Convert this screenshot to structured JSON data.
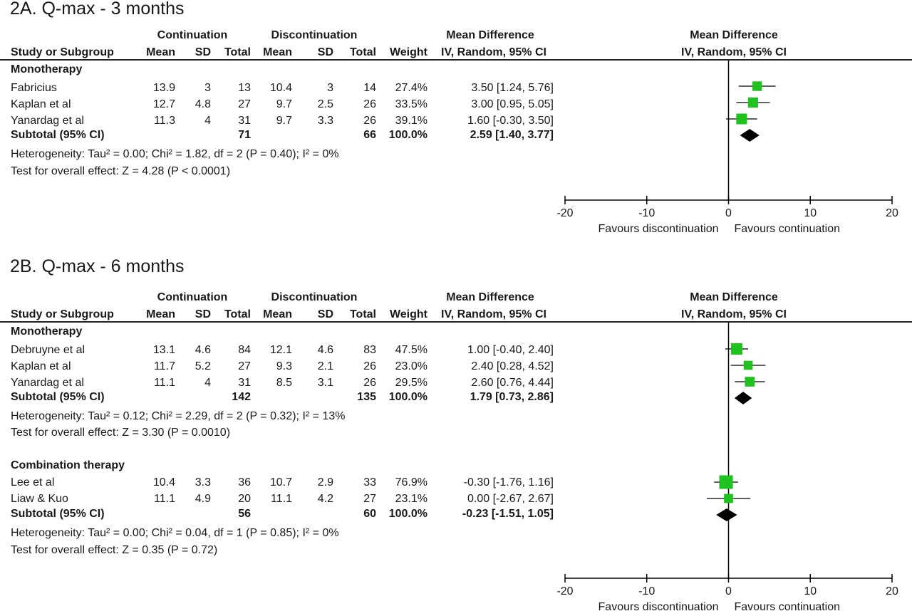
{
  "panels": [
    {
      "title": "2A. Q-max - 3 months",
      "headers": {
        "continuation": "Continuation",
        "discontinuation": "Discontinuation",
        "md_top": "Mean Difference",
        "md_bottom": "IV, Random, 95% CI",
        "study": "Study or Subgroup",
        "mean": "Mean",
        "sd": "SD",
        "total": "Total",
        "weight": "Weight"
      },
      "groups": [
        {
          "name": "Monotherapy",
          "studies": [
            {
              "study": "Fabricius",
              "c_mean": "13.9",
              "c_sd": "3",
              "c_total": "13",
              "d_mean": "10.4",
              "d_sd": "3",
              "d_total": "14",
              "weight": "27.4%",
              "ci_text": "3.50 [1.24, 5.76]"
            },
            {
              "study": "Kaplan et al",
              "c_mean": "12.7",
              "c_sd": "4.8",
              "c_total": "27",
              "d_mean": "9.7",
              "d_sd": "2.5",
              "d_total": "26",
              "weight": "33.5%",
              "ci_text": "3.00 [0.95, 5.05]"
            },
            {
              "study": "Yanardag et al",
              "c_mean": "11.3",
              "c_sd": "4",
              "c_total": "31",
              "d_mean": "9.7",
              "d_sd": "3.3",
              "d_total": "26",
              "weight": "39.1%",
              "ci_text": "1.60 [-0.30, 3.50]"
            }
          ],
          "subtotal": {
            "label": "Subtotal (95% CI)",
            "c_total": "71",
            "d_total": "66",
            "weight": "100.0%",
            "ci_text": "2.59 [1.40, 3.77]"
          },
          "heterogeneity": "Heterogeneity: Tau² = 0.00; Chi² = 1.82, df = 2 (P = 0.40); I² = 0%",
          "overall": "Test for overall effect: Z = 4.28 (P < 0.0001)"
        }
      ],
      "axis": {
        "ticks": [
          "-20",
          "-10",
          "0",
          "10",
          "20"
        ],
        "favours_left": "Favours discontinuation",
        "favours_right": "Favours continuation"
      }
    },
    {
      "title": "2B. Q-max - 6 months",
      "headers": {
        "continuation": "Continuation",
        "discontinuation": "Discontinuation",
        "md_top": "Mean Difference",
        "md_bottom": "IV, Random, 95% CI",
        "study": "Study or Subgroup",
        "mean": "Mean",
        "sd": "SD",
        "total": "Total",
        "weight": "Weight"
      },
      "groups": [
        {
          "name": "Monotherapy",
          "studies": [
            {
              "study": "Debruyne et al",
              "c_mean": "13.1",
              "c_sd": "4.6",
              "c_total": "84",
              "d_mean": "12.1",
              "d_sd": "4.6",
              "d_total": "83",
              "weight": "47.5%",
              "ci_text": "1.00 [-0.40, 2.40]"
            },
            {
              "study": "Kaplan et al",
              "c_mean": "11.7",
              "c_sd": "5.2",
              "c_total": "27",
              "d_mean": "9.3",
              "d_sd": "2.1",
              "d_total": "26",
              "weight": "23.0%",
              "ci_text": "2.40 [0.28, 4.52]"
            },
            {
              "study": "Yanardag et al",
              "c_mean": "11.1",
              "c_sd": "4",
              "c_total": "31",
              "d_mean": "8.5",
              "d_sd": "3.1",
              "d_total": "26",
              "weight": "29.5%",
              "ci_text": "2.60 [0.76, 4.44]"
            }
          ],
          "subtotal": {
            "label": "Subtotal (95% CI)",
            "c_total": "142",
            "d_total": "135",
            "weight": "100.0%",
            "ci_text": "1.79 [0.73, 2.86]"
          },
          "heterogeneity": "Heterogeneity: Tau² = 0.12; Chi² = 2.29, df = 2 (P = 0.32); I² = 13%",
          "overall": "Test for overall effect: Z = 3.30 (P = 0.0010)"
        },
        {
          "name": "Combination therapy",
          "studies": [
            {
              "study": "Lee et al",
              "c_mean": "10.4",
              "c_sd": "3.3",
              "c_total": "36",
              "d_mean": "10.7",
              "d_sd": "2.9",
              "d_total": "33",
              "weight": "76.9%",
              "ci_text": "-0.30 [-1.76, 1.16]"
            },
            {
              "study": "Liaw & Kuo",
              "c_mean": "11.1",
              "c_sd": "4.9",
              "c_total": "20",
              "d_mean": "11.1",
              "d_sd": "4.2",
              "d_total": "27",
              "weight": "23.1%",
              "ci_text": "0.00 [-2.67, 2.67]"
            }
          ],
          "subtotal": {
            "label": "Subtotal (95% CI)",
            "c_total": "56",
            "d_total": "60",
            "weight": "100.0%",
            "ci_text": "-0.23 [-1.51, 1.05]"
          },
          "heterogeneity": "Heterogeneity: Tau² = 0.00; Chi² = 0.04, df = 1 (P = 0.85); I² = 0%",
          "overall": "Test for overall effect: Z = 0.35 (P = 0.72)"
        }
      ],
      "axis": {
        "ticks": [
          "-20",
          "-10",
          "0",
          "10",
          "20"
        ],
        "favours_left": "Favours discontinuation",
        "favours_right": "Favours continuation"
      }
    }
  ],
  "colors": {
    "square": "#1fc21f",
    "diamond": "#000000",
    "line": "#000000"
  },
  "chart_data": [
    {
      "type": "forest",
      "title": "2A. Q-max - 3 months",
      "xlim": [
        -20,
        20
      ],
      "xticks": [
        -20,
        -10,
        0,
        10,
        20
      ],
      "studies": [
        {
          "name": "Fabricius",
          "md": 3.5,
          "lo": 1.24,
          "hi": 5.76,
          "weight": 27.4
        },
        {
          "name": "Kaplan et al",
          "md": 3.0,
          "lo": 0.95,
          "hi": 5.05,
          "weight": 33.5
        },
        {
          "name": "Yanardag et al",
          "md": 1.6,
          "lo": -0.3,
          "hi": 3.5,
          "weight": 39.1
        }
      ],
      "subtotals": [
        {
          "name": "Monotherapy",
          "md": 2.59,
          "lo": 1.4,
          "hi": 3.77
        }
      ]
    },
    {
      "type": "forest",
      "title": "2B. Q-max - 6 months",
      "xlim": [
        -20,
        20
      ],
      "xticks": [
        -20,
        -10,
        0,
        10,
        20
      ],
      "studies": [
        {
          "name": "Debruyne et al",
          "md": 1.0,
          "lo": -0.4,
          "hi": 2.4,
          "weight": 47.5
        },
        {
          "name": "Kaplan et al",
          "md": 2.4,
          "lo": 0.28,
          "hi": 4.52,
          "weight": 23.0
        },
        {
          "name": "Yanardag et al",
          "md": 2.6,
          "lo": 0.76,
          "hi": 4.44,
          "weight": 29.5
        },
        {
          "name": "Lee et al",
          "md": -0.3,
          "lo": -1.76,
          "hi": 1.16,
          "weight": 76.9
        },
        {
          "name": "Liaw & Kuo",
          "md": 0.0,
          "lo": -2.67,
          "hi": 2.67,
          "weight": 23.1
        }
      ],
      "subtotals": [
        {
          "name": "Monotherapy",
          "md": 1.79,
          "lo": 0.73,
          "hi": 2.86
        },
        {
          "name": "Combination therapy",
          "md": -0.23,
          "lo": -1.51,
          "hi": 1.05
        }
      ]
    }
  ]
}
